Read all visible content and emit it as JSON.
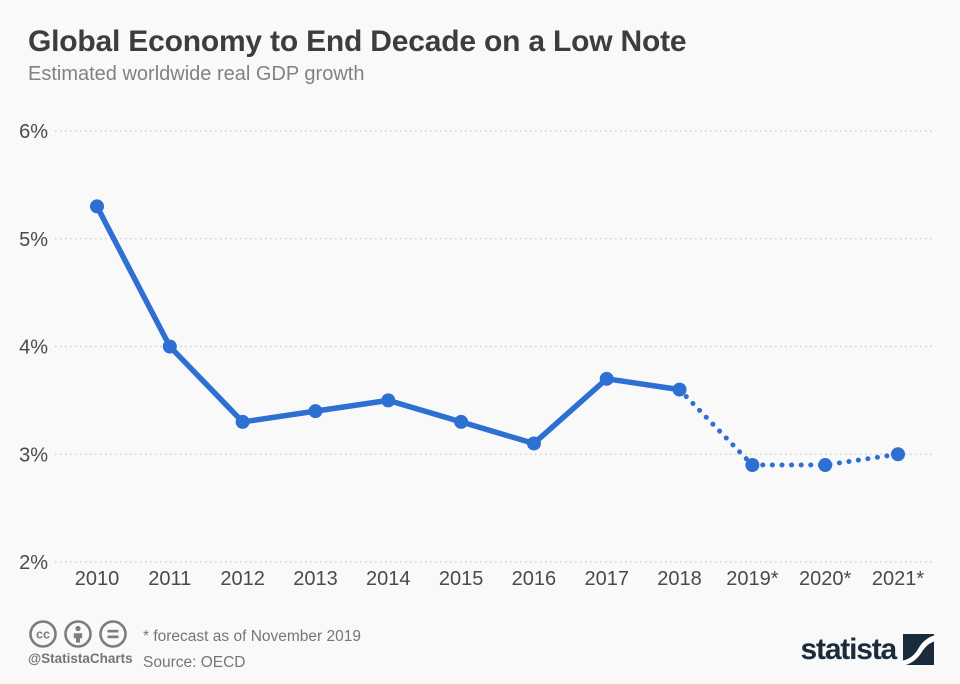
{
  "page": {
    "title": "Global Economy to End Decade on a Low Note",
    "subtitle": "Estimated worldwide real GDP growth"
  },
  "chart_data": {
    "type": "line",
    "title": "Global Economy to End Decade on a Low Note",
    "subtitle": "Estimated worldwide real GDP growth",
    "categories": [
      "2010",
      "2011",
      "2012",
      "2013",
      "2014",
      "2015",
      "2016",
      "2017",
      "2018",
      "2019*",
      "2020*",
      "2021*"
    ],
    "values": [
      5.3,
      4.0,
      3.3,
      3.4,
      3.5,
      3.3,
      3.1,
      3.7,
      3.6,
      2.9,
      2.9,
      3.0
    ],
    "unit": "%",
    "forecast_from_index": 8,
    "forecast_style": "dotted",
    "yticks": [
      2,
      3,
      4,
      5,
      6
    ],
    "ytick_labels": [
      "2%",
      "3%",
      "4%",
      "5%",
      "6%"
    ],
    "ylim": [
      2,
      6
    ],
    "grid": true,
    "legend": "none",
    "line_color": "#2e6fd2"
  },
  "footer": {
    "handle": "@StatistaCharts",
    "footnote": "* forecast as of November 2019",
    "source": "Source: OECD",
    "brand": "statista",
    "license_icons": [
      "cc-icon",
      "attribution-icon",
      "equal-icon"
    ]
  },
  "colors": {
    "background": "#f9f9f9",
    "line": "#2e6fd2",
    "grid": "#c9c9c9",
    "title": "#3d3d3d",
    "subtitle": "#828282",
    "axis_label": "#4a4a4a",
    "footer_text": "#767676",
    "brand_navy": "#1a2b3c"
  }
}
